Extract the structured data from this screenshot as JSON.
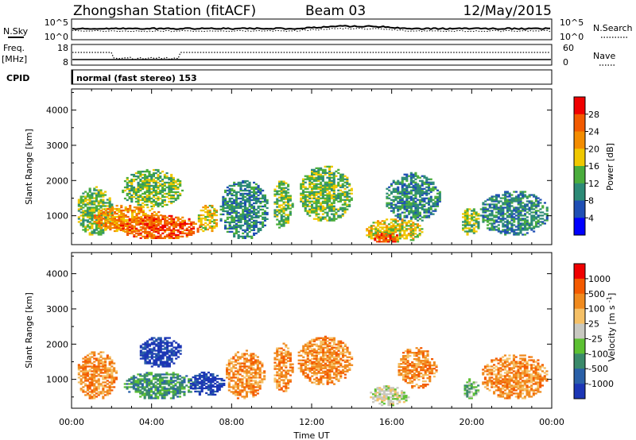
{
  "header": {
    "title": "Zhongshan Station (fitACF)",
    "beam": "Beam 03",
    "date": "12/May/2015"
  },
  "panels": {
    "nsky": {
      "label": "N.Sky",
      "tick_top": "10^5",
      "tick_bottom": "10^0",
      "right_label": "N.Search",
      "right_tick_top": "10^5",
      "right_tick_bottom": "10^0"
    },
    "freq": {
      "label_1": "Freq.",
      "label_2": "[MHz]",
      "tick_top": "18",
      "tick_bottom": "8",
      "right_label": "Nave",
      "right_tick_top": "60",
      "right_tick_bottom": "0"
    },
    "cpid": {
      "label": "CPID",
      "text": "normal (fast stereo) 153"
    }
  },
  "chart_data": [
    {
      "type": "heatmap",
      "name": "power",
      "ylabel": "Slant Range [km]",
      "yticks": [
        "1000",
        "2000",
        "3000",
        "4000"
      ],
      "ylim": [
        180,
        4600
      ],
      "xlim": [
        0,
        24
      ],
      "colorbar_label": "Power [dB]",
      "colorbar_ticks": [
        "4",
        "8",
        "12",
        "16",
        "20",
        "24",
        "28"
      ],
      "colorbar_colors": [
        "#0000ff",
        "#1f4fb4",
        "#2c8a76",
        "#4aad3c",
        "#f0c800",
        "#f38c00",
        "#f25a00",
        "#f00000"
      ],
      "blobs": [
        {
          "t0": 0.2,
          "t1": 2.0,
          "r0": 400,
          "r1": 1800,
          "level": 3
        },
        {
          "t0": 1.0,
          "t1": 4.5,
          "r0": 500,
          "r1": 1300,
          "level": 5
        },
        {
          "t0": 2.3,
          "t1": 6.4,
          "r0": 300,
          "r1": 1000,
          "level": 6
        },
        {
          "t0": 2.4,
          "t1": 5.5,
          "r0": 1200,
          "r1": 2300,
          "level": 3
        },
        {
          "t0": 6.2,
          "t1": 7.3,
          "r0": 500,
          "r1": 1300,
          "level": 4
        },
        {
          "t0": 7.3,
          "t1": 9.8,
          "r0": 300,
          "r1": 2000,
          "level": 2
        },
        {
          "t0": 10.0,
          "t1": 11.0,
          "r0": 600,
          "r1": 2000,
          "level": 3
        },
        {
          "t0": 11.3,
          "t1": 14.0,
          "r0": 800,
          "r1": 2400,
          "level": 3
        },
        {
          "t0": 14.6,
          "t1": 17.5,
          "r0": 200,
          "r1": 900,
          "level": 4
        },
        {
          "t0": 15.0,
          "t1": 16.3,
          "r0": 200,
          "r1": 500,
          "level": 6
        },
        {
          "t0": 15.6,
          "t1": 18.4,
          "r0": 800,
          "r1": 2200,
          "level": 2
        },
        {
          "t0": 19.4,
          "t1": 20.4,
          "r0": 400,
          "r1": 1200,
          "level": 3
        },
        {
          "t0": 20.3,
          "t1": 23.8,
          "r0": 400,
          "r1": 1700,
          "level": 2
        }
      ]
    },
    {
      "type": "heatmap",
      "name": "velocity",
      "ylabel": "Slant Range [km]",
      "yticks": [
        "1000",
        "2000",
        "3000",
        "4000"
      ],
      "ylim": [
        180,
        4600
      ],
      "xlim": [
        0,
        24
      ],
      "xticks": [
        "00:00",
        "04:00",
        "08:00",
        "12:00",
        "16:00",
        "20:00",
        "00:00"
      ],
      "xlabel": "Time UT",
      "colorbar_label": "Velocity [m s^-1]",
      "colorbar_ticks": [
        "1000",
        "500",
        "100",
        "25",
        "-25",
        "-100",
        "-500",
        "-1000"
      ],
      "colorbar_colors": [
        "#1c36b5",
        "#2a60a8",
        "#3a8a6a",
        "#5cc032",
        "#c8c8c0",
        "#f5c066",
        "#f08a1e",
        "#f45a00",
        "#f00000"
      ],
      "blobs": [
        {
          "t0": 0.2,
          "t1": 2.2,
          "r0": 400,
          "r1": 1800,
          "level": 6
        },
        {
          "t0": 2.5,
          "t1": 6.2,
          "r0": 400,
          "r1": 1200,
          "level": 2
        },
        {
          "t0": 3.3,
          "t1": 5.5,
          "r0": 1300,
          "r1": 2200,
          "level": 0
        },
        {
          "t0": 5.8,
          "t1": 7.6,
          "r0": 500,
          "r1": 1200,
          "level": 0
        },
        {
          "t0": 7.6,
          "t1": 9.6,
          "r0": 400,
          "r1": 1800,
          "level": 6
        },
        {
          "t0": 10.0,
          "t1": 11.0,
          "r0": 600,
          "r1": 2000,
          "level": 6
        },
        {
          "t0": 11.2,
          "t1": 14.0,
          "r0": 800,
          "r1": 2200,
          "level": 6
        },
        {
          "t0": 14.8,
          "t1": 16.8,
          "r0": 200,
          "r1": 800,
          "level": 4
        },
        {
          "t0": 16.2,
          "t1": 18.2,
          "r0": 700,
          "r1": 1900,
          "level": 6
        },
        {
          "t0": 19.5,
          "t1": 20.3,
          "r0": 400,
          "r1": 1000,
          "level": 3
        },
        {
          "t0": 20.4,
          "t1": 23.8,
          "r0": 400,
          "r1": 1700,
          "level": 6
        }
      ]
    }
  ]
}
